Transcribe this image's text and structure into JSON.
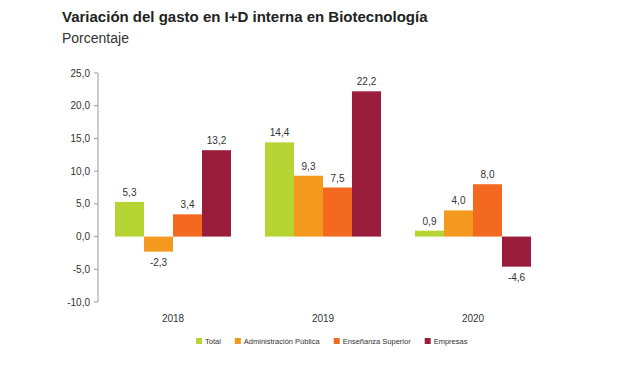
{
  "chart_data": {
    "type": "bar",
    "title": "Variación del gasto en I+D interna en Biotecnología",
    "subtitle": "Porcentaje",
    "categories": [
      "2018",
      "2019",
      "2020"
    ],
    "series": [
      {
        "name": "Total",
        "color": "#b6d433",
        "values": [
          5.3,
          14.4,
          0.9
        ],
        "value_labels": [
          "5,3",
          "14,4",
          "0,9"
        ]
      },
      {
        "name": "Administración Pública",
        "color": "#f39a1e",
        "values": [
          -2.3,
          9.3,
          4.0
        ],
        "value_labels": [
          "-2,3",
          "9,3",
          "4,0"
        ]
      },
      {
        "name": "Enseñanza Superior",
        "color": "#f2691f",
        "values": [
          3.4,
          7.5,
          8.0
        ],
        "value_labels": [
          "3,4",
          "7,5",
          "8,0"
        ]
      },
      {
        "name": "Empresas",
        "color": "#9a1e3c",
        "values": [
          13.2,
          22.2,
          -4.6
        ],
        "value_labels": [
          "13,2",
          "22,2",
          "-4,6"
        ]
      }
    ],
    "ylim": [
      -10,
      25
    ],
    "yticks": [
      {
        "value": -10,
        "label": "-10,0"
      },
      {
        "value": -5,
        "label": "-5,0"
      },
      {
        "value": 0,
        "label": "0,0"
      },
      {
        "value": 5,
        "label": "5,0"
      },
      {
        "value": 10,
        "label": "10,0"
      },
      {
        "value": 15,
        "label": "15,0"
      },
      {
        "value": 20,
        "label": "20,0"
      },
      {
        "value": 25,
        "label": "25,0"
      }
    ],
    "grid": false,
    "legend": "bottom",
    "data_labels": true
  }
}
